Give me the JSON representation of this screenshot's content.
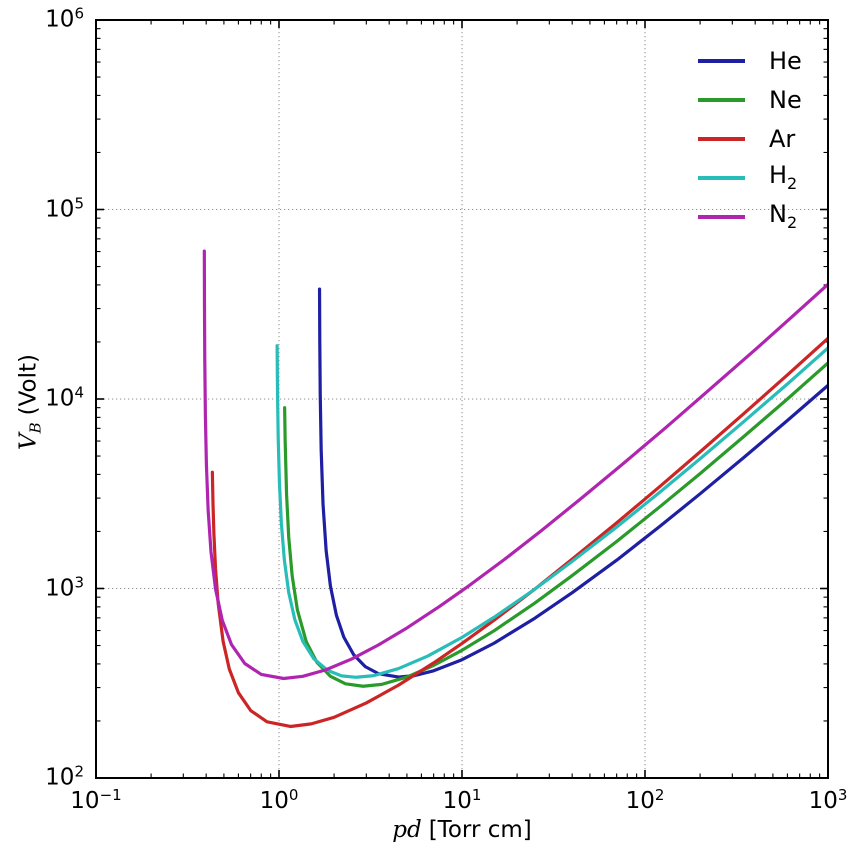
{
  "page": {
    "background": "#ffffff"
  },
  "axes": {
    "x": {
      "label_math": "pd",
      "label_rest": "[Torr cm]",
      "scale": "log",
      "ticks": [
        {
          "base": "10",
          "exp": "−1"
        },
        {
          "base": "10",
          "exp": "0"
        },
        {
          "base": "10",
          "exp": "1"
        },
        {
          "base": "10",
          "exp": "2"
        },
        {
          "base": "10",
          "exp": "3"
        }
      ]
    },
    "y": {
      "label_math": "V",
      "label_sub": "B",
      "label_rest": "(Volt)",
      "scale": "log",
      "ticks": [
        {
          "base": "10",
          "exp": "2"
        },
        {
          "base": "10",
          "exp": "3"
        },
        {
          "base": "10",
          "exp": "4"
        },
        {
          "base": "10",
          "exp": "5"
        },
        {
          "base": "10",
          "exp": "6"
        }
      ]
    }
  },
  "legend": {
    "items": [
      {
        "label": "He",
        "sub": "",
        "color": "#1f1fa3"
      },
      {
        "label": "Ne",
        "sub": "",
        "color": "#2a9a2a"
      },
      {
        "label": "Ar",
        "sub": "",
        "color": "#cc2525"
      },
      {
        "label": "H",
        "sub": "2",
        "color": "#29bdb9"
      },
      {
        "label": "N",
        "sub": "2",
        "color": "#b025b0"
      }
    ]
  },
  "style": {
    "grid_color": "#8f8f8f",
    "spine_color": "#000000",
    "line_width": 3.2
  },
  "chart_data": {
    "type": "line",
    "title": "",
    "xlabel": "pd [Torr cm]",
    "ylabel": "V_B (Volt)",
    "xscale": "log",
    "yscale": "log",
    "xlim": [
      0.1,
      1000
    ],
    "ylim": [
      100,
      1000000
    ],
    "grid": true,
    "legend_position": "upper right",
    "series": [
      {
        "name": "He",
        "color": "#1f1fa3",
        "points": [
          [
            1.6655,
            38000
          ],
          [
            1.67,
            21000
          ],
          [
            1.68,
            10600
          ],
          [
            1.7,
            5400
          ],
          [
            1.74,
            2790
          ],
          [
            1.81,
            1580
          ],
          [
            1.91,
            1030
          ],
          [
            2.06,
            721
          ],
          [
            2.26,
            554
          ],
          [
            2.56,
            447
          ],
          [
            2.96,
            387
          ],
          [
            3.5,
            355
          ],
          [
            4.51,
            341
          ],
          [
            5.5,
            347
          ],
          [
            7,
            368
          ],
          [
            10,
            421
          ],
          [
            15,
            515
          ],
          [
            25,
            697
          ],
          [
            40,
            950
          ],
          [
            70,
            1410
          ],
          [
            120,
            2120
          ],
          [
            200,
            3160
          ],
          [
            350,
            4950
          ],
          [
            600,
            7700
          ],
          [
            1000,
            11800
          ]
        ]
      },
      {
        "name": "Ne",
        "color": "#2a9a2a",
        "points": [
          [
            1.0735,
            9000
          ],
          [
            1.08,
            6120
          ],
          [
            1.1,
            3140
          ],
          [
            1.13,
            1870
          ],
          [
            1.18,
            1170
          ],
          [
            1.26,
            772
          ],
          [
            1.41,
            523
          ],
          [
            1.61,
            408
          ],
          [
            1.91,
            344
          ],
          [
            2.31,
            314
          ],
          [
            2.88,
            305
          ],
          [
            3.64,
            312
          ],
          [
            5,
            341
          ],
          [
            7,
            393
          ],
          [
            10,
            472
          ],
          [
            15,
            599
          ],
          [
            25,
            838
          ],
          [
            40,
            1170
          ],
          [
            70,
            1770
          ],
          [
            120,
            2690
          ],
          [
            200,
            4040
          ],
          [
            350,
            6390
          ],
          [
            600,
            10000
          ],
          [
            1000,
            15500
          ]
        ]
      },
      {
        "name": "Ar",
        "color": "#cc2525",
        "points": [
          [
            0.4323,
            4110
          ],
          [
            0.436,
            2760
          ],
          [
            0.441,
            1930
          ],
          [
            0.45,
            1270
          ],
          [
            0.465,
            837
          ],
          [
            0.495,
            526
          ],
          [
            0.535,
            376
          ],
          [
            0.6,
            282
          ],
          [
            0.7,
            227
          ],
          [
            0.86,
            198
          ],
          [
            1.155,
            187
          ],
          [
            1.5,
            193
          ],
          [
            2,
            209
          ],
          [
            3,
            249
          ],
          [
            4.5,
            309
          ],
          [
            7,
            405
          ],
          [
            10,
            513
          ],
          [
            15,
            681
          ],
          [
            25,
            993
          ],
          [
            40,
            1430
          ],
          [
            70,
            2220
          ],
          [
            120,
            3440
          ],
          [
            200,
            5260
          ],
          [
            350,
            8440
          ],
          [
            600,
            13400
          ],
          [
            1000,
            20900
          ]
        ]
      },
      {
        "name": "H2",
        "color": "#29bdb9",
        "points": [
          [
            0.9764,
            19100
          ],
          [
            0.982,
            10300
          ],
          [
            0.99,
            6250
          ],
          [
            1.005,
            3660
          ],
          [
            1.03,
            2210
          ],
          [
            1.07,
            1410
          ],
          [
            1.13,
            954
          ],
          [
            1.22,
            686
          ],
          [
            1.35,
            526
          ],
          [
            1.55,
            426
          ],
          [
            1.85,
            369
          ],
          [
            2.2,
            346
          ],
          [
            2.64,
            340
          ],
          [
            3.3,
            347
          ],
          [
            4.5,
            378
          ],
          [
            6.5,
            440
          ],
          [
            10,
            552
          ],
          [
            15,
            706
          ],
          [
            25,
            992
          ],
          [
            40,
            1390
          ],
          [
            70,
            2110
          ],
          [
            120,
            3210
          ],
          [
            200,
            4840
          ],
          [
            350,
            7660
          ],
          [
            600,
            12000
          ],
          [
            1000,
            18600
          ]
        ]
      },
      {
        "name": "N2",
        "color": "#b025b0",
        "points": [
          [
            0.3908,
            60300
          ],
          [
            0.3915,
            32200
          ],
          [
            0.393,
            16200
          ],
          [
            0.396,
            8200
          ],
          [
            0.401,
            4560
          ],
          [
            0.41,
            2590
          ],
          [
            0.425,
            1560
          ],
          [
            0.45,
            994
          ],
          [
            0.49,
            678
          ],
          [
            0.55,
            506
          ],
          [
            0.65,
            402
          ],
          [
            0.8,
            352
          ],
          [
            1.06,
            335
          ],
          [
            1.35,
            344
          ],
          [
            1.8,
            372
          ],
          [
            2.5,
            425
          ],
          [
            3.5,
            504
          ],
          [
            5,
            619
          ],
          [
            7.5,
            802
          ],
          [
            11,
            1040
          ],
          [
            17,
            1420
          ],
          [
            27,
            2010
          ],
          [
            45,
            3000
          ],
          [
            75,
            4510
          ],
          [
            130,
            7070
          ],
          [
            220,
            11000
          ],
          [
            400,
            18200
          ],
          [
            650,
            27700
          ],
          [
            1000,
            40300
          ]
        ]
      }
    ]
  }
}
